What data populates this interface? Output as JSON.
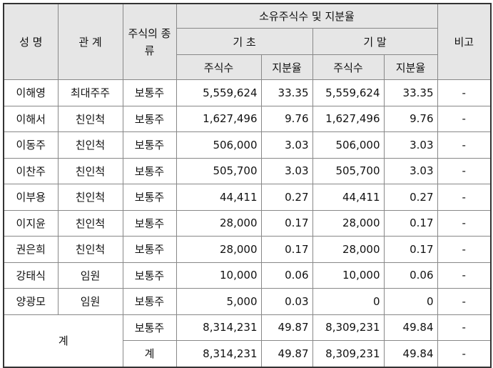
{
  "header": {
    "name": "성 명",
    "relation": "관 계",
    "stock_type": "주식의 종류",
    "holdings": "소유주식수 및 지분율",
    "begin": "기 초",
    "end": "기 말",
    "shares": "주식수",
    "ratio": "지분율",
    "note": "비고"
  },
  "rows": [
    {
      "name": "이해영",
      "relation": "최대주주",
      "type": "보통주",
      "begin_shares": "5,559,624",
      "begin_ratio": "33.35",
      "end_shares": "5,559,624",
      "end_ratio": "33.35",
      "note": "-"
    },
    {
      "name": "이해서",
      "relation": "친인척",
      "type": "보통주",
      "begin_shares": "1,627,496",
      "begin_ratio": "9.76",
      "end_shares": "1,627,496",
      "end_ratio": "9.76",
      "note": "-"
    },
    {
      "name": "이동주",
      "relation": "친인척",
      "type": "보통주",
      "begin_shares": "506,000",
      "begin_ratio": "3.03",
      "end_shares": "506,000",
      "end_ratio": "3.03",
      "note": "-"
    },
    {
      "name": "이찬주",
      "relation": "친인척",
      "type": "보통주",
      "begin_shares": "505,700",
      "begin_ratio": "3.03",
      "end_shares": "505,700",
      "end_ratio": "3.03",
      "note": "-"
    },
    {
      "name": "이부용",
      "relation": "친인척",
      "type": "보통주",
      "begin_shares": "44,411",
      "begin_ratio": "0.27",
      "end_shares": "44,411",
      "end_ratio": "0.27",
      "note": "-"
    },
    {
      "name": "이지윤",
      "relation": "친인척",
      "type": "보통주",
      "begin_shares": "28,000",
      "begin_ratio": "0.17",
      "end_shares": "28,000",
      "end_ratio": "0.17",
      "note": "-"
    },
    {
      "name": "권은희",
      "relation": "친인척",
      "type": "보통주",
      "begin_shares": "28,000",
      "begin_ratio": "0.17",
      "end_shares": "28,000",
      "end_ratio": "0.17",
      "note": "-"
    },
    {
      "name": "강태식",
      "relation": "임원",
      "type": "보통주",
      "begin_shares": "10,000",
      "begin_ratio": "0.06",
      "end_shares": "10,000",
      "end_ratio": "0.06",
      "note": "-"
    },
    {
      "name": "양광모",
      "relation": "임원",
      "type": "보통주",
      "begin_shares": "5,000",
      "begin_ratio": "0.03",
      "end_shares": "0",
      "end_ratio": "0",
      "note": "-"
    }
  ],
  "total": {
    "label": "계",
    "rows": [
      {
        "type": "보통주",
        "begin_shares": "8,314,231",
        "begin_ratio": "49.87",
        "end_shares": "8,309,231",
        "end_ratio": "49.84",
        "note": "-"
      },
      {
        "type": "계",
        "begin_shares": "8,314,231",
        "begin_ratio": "49.87",
        "end_shares": "8,309,231",
        "end_ratio": "49.84",
        "note": "-"
      }
    ]
  }
}
